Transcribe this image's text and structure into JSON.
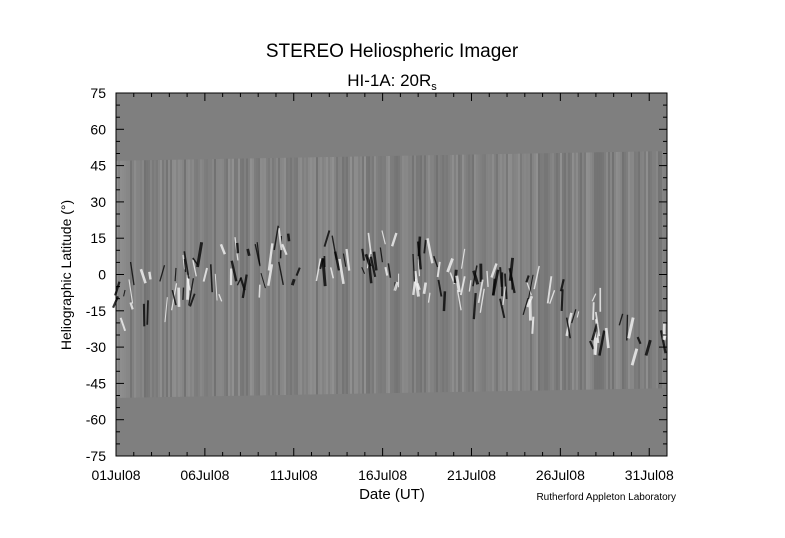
{
  "chart_data": {
    "type": "heatmap",
    "title": "STEREO Heliospheric Imager",
    "subtitle_main": "HI-1A: 20R",
    "subtitle_sub": "s",
    "xlabel": "Date (UT)",
    "ylabel": "Heliographic Latitude (°)",
    "credit": "Rutherford Appleton Laboratory",
    "x_ticks": [
      "01Jul08",
      "06Jul08",
      "11Jul08",
      "16Jul08",
      "21Jul08",
      "26Jul08",
      "31Jul08"
    ],
    "y_ticks": [
      75,
      60,
      45,
      30,
      15,
      0,
      -15,
      -30,
      -45,
      -60,
      -75
    ],
    "ylim": [
      -75,
      75
    ],
    "xlim": [
      "01Jul08",
      "01Aug08"
    ],
    "data_band_latitude": {
      "start": {
        "date": "01Jul08",
        "top": 47,
        "bottom": -51
      },
      "end": {
        "date": "01Aug08",
        "top": 51,
        "bottom": -47
      }
    },
    "background_color": "#7f7f7f",
    "grid": false
  }
}
